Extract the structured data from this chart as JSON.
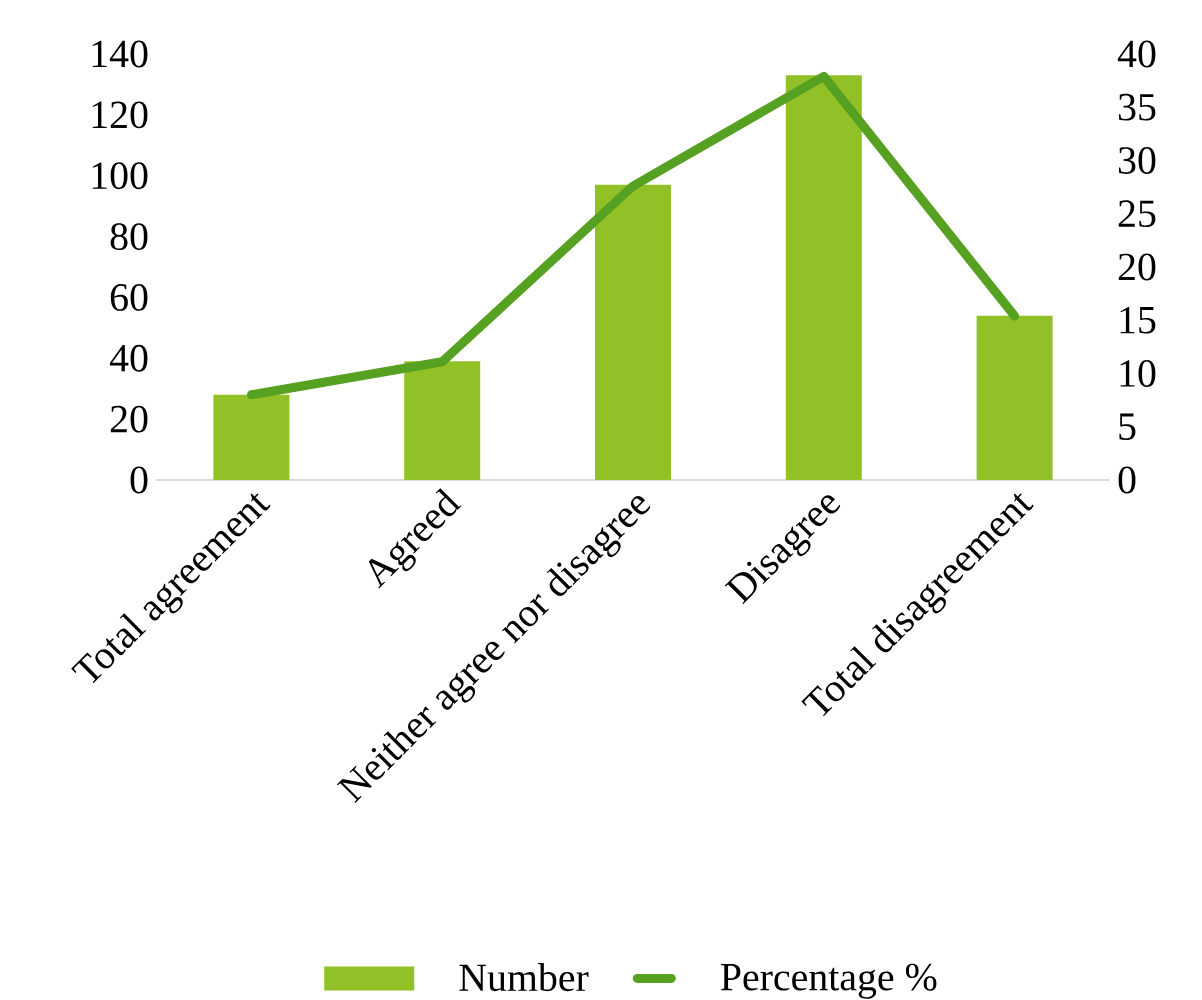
{
  "chart_data": {
    "type": "bar",
    "categories": [
      "Total agreement",
      "Agreed",
      "Neither agree nor disagree",
      "Disagree",
      "Total disagreement"
    ],
    "series": [
      {
        "name": "Number",
        "color": "#92c027",
        "values": [
          28,
          39,
          97,
          133,
          54
        ]
      },
      {
        "name": "Percentage %",
        "type": "line",
        "axis": "y2",
        "color": "#56a121",
        "values": [
          8.0,
          11.1,
          27.6,
          37.9,
          15.4
        ]
      }
    ],
    "ylim": [
      0,
      140
    ],
    "yticks": [
      0,
      20,
      40,
      60,
      80,
      100,
      120,
      140
    ],
    "y2lim": [
      0,
      40
    ],
    "y2ticks": [
      0,
      5,
      10,
      15,
      20,
      25,
      30,
      35,
      40
    ],
    "legend": "bottom"
  }
}
